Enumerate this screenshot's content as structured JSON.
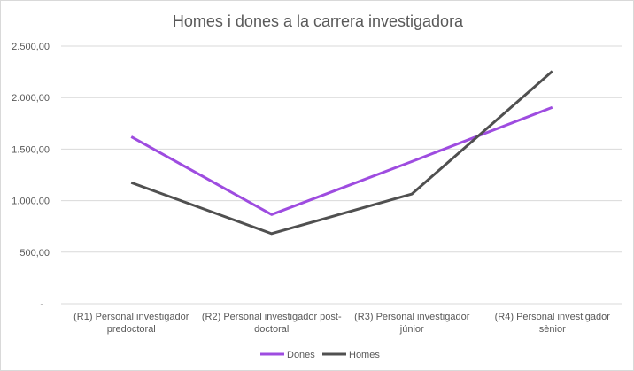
{
  "chart_data": {
    "type": "line",
    "title": "Homes i dones a la carrera investigadora",
    "categories": [
      [
        "(R1) Personal investigador",
        "predoctoral"
      ],
      [
        "(R2) Personal investigador post-",
        "doctoral"
      ],
      [
        "(R3) Personal investigador",
        "júnior"
      ],
      [
        "(R4) Personal investigador",
        "sènior"
      ]
    ],
    "ylim": [
      0,
      2500
    ],
    "yticks": [
      0,
      500,
      1000,
      1500,
      2000,
      2500
    ],
    "ytick_labels": [
      "-",
      "500,00",
      "1.000,00",
      "1.500,00",
      "2.000,00",
      "2.500,00"
    ],
    "grid": true,
    "legend": "bottom",
    "series": [
      {
        "name": "Dones",
        "color": "#9e4ce0",
        "values": [
          1620,
          865,
          1380,
          1905
        ]
      },
      {
        "name": "Homes",
        "color": "#505050",
        "values": [
          1175,
          680,
          1065,
          2255
        ]
      }
    ]
  }
}
